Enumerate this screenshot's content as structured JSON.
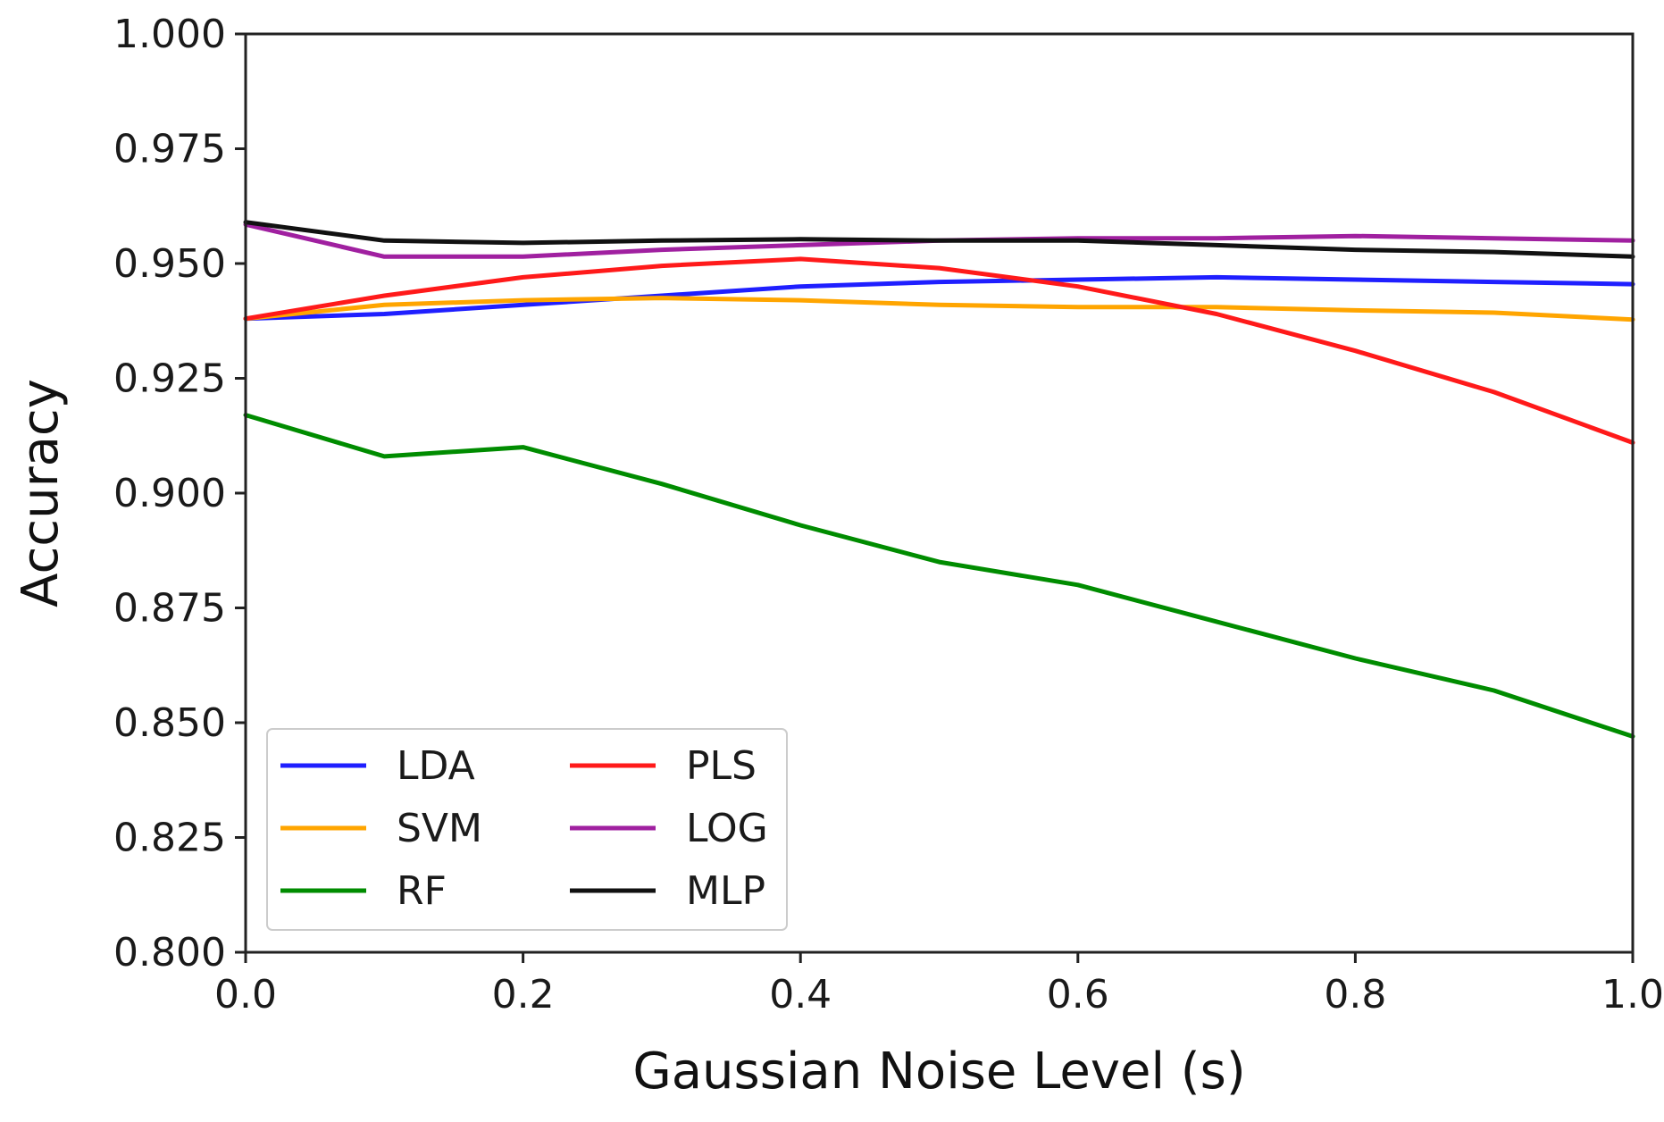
{
  "chart_data": {
    "type": "line",
    "title": "",
    "xlabel": "Gaussian Noise Level (s)",
    "ylabel": "Accuracy",
    "xlim": [
      0.0,
      1.0
    ],
    "ylim": [
      0.8,
      1.0
    ],
    "x_ticks": [
      "0.0",
      "0.2",
      "0.4",
      "0.6",
      "0.8",
      "1.0"
    ],
    "y_ticks": [
      "0.800",
      "0.825",
      "0.850",
      "0.875",
      "0.900",
      "0.925",
      "0.950",
      "0.975",
      "1.000"
    ],
    "grid": false,
    "legend_position": "lower-left",
    "legend_columns": 2,
    "x": [
      0.0,
      0.1,
      0.2,
      0.3,
      0.4,
      0.5,
      0.6,
      0.7,
      0.8,
      0.9,
      1.0
    ],
    "series": [
      {
        "name": "LDA",
        "color": "#1f1fff",
        "values": [
          0.938,
          0.939,
          0.941,
          0.943,
          0.945,
          0.946,
          0.9465,
          0.947,
          0.9465,
          0.946,
          0.9455
        ]
      },
      {
        "name": "SVM",
        "color": "#ffa500",
        "values": [
          0.938,
          0.941,
          0.942,
          0.9425,
          0.942,
          0.941,
          0.9405,
          0.9405,
          0.9398,
          0.9393,
          0.9378
        ]
      },
      {
        "name": "RF",
        "color": "#008c00",
        "values": [
          0.917,
          0.908,
          0.91,
          0.902,
          0.893,
          0.885,
          0.88,
          0.872,
          0.864,
          0.857,
          0.847
        ]
      },
      {
        "name": "PLS",
        "color": "#ff1a1a",
        "values": [
          0.938,
          0.943,
          0.947,
          0.9495,
          0.951,
          0.949,
          0.945,
          0.939,
          0.931,
          0.922,
          0.911
        ]
      },
      {
        "name": "LOG",
        "color": "#a020a0",
        "values": [
          0.9585,
          0.9515,
          0.9515,
          0.953,
          0.954,
          0.955,
          0.9555,
          0.9555,
          0.956,
          0.9555,
          0.955
        ]
      },
      {
        "name": "MLP",
        "color": "#111111",
        "values": [
          0.959,
          0.955,
          0.9545,
          0.955,
          0.9553,
          0.955,
          0.955,
          0.954,
          0.953,
          0.9525,
          0.9515
        ]
      }
    ]
  }
}
